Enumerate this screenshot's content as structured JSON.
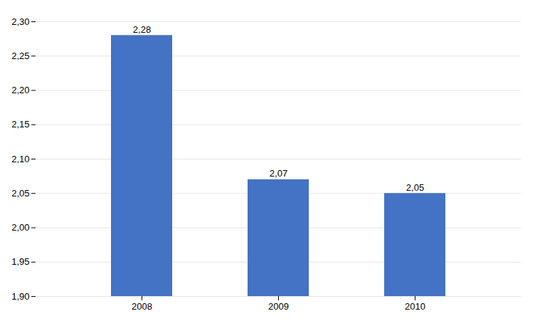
{
  "chart_data": {
    "type": "bar",
    "categories": [
      "2008",
      "2009",
      "2010"
    ],
    "values": [
      2.28,
      2.07,
      2.05
    ],
    "value_labels": [
      "2,28",
      "2,07",
      "2,05"
    ],
    "data_labels": true,
    "color": "#4472C4",
    "ylim": [
      1.9,
      2.3
    ],
    "yticks": [
      {
        "value": 1.9,
        "label": "1,90"
      },
      {
        "value": 1.95,
        "label": "1,95"
      },
      {
        "value": 2.0,
        "label": "2,00"
      },
      {
        "value": 2.05,
        "label": "2,05"
      },
      {
        "value": 2.1,
        "label": "2,10"
      },
      {
        "value": 2.15,
        "label": "2,15"
      },
      {
        "value": 2.2,
        "label": "2,20"
      },
      {
        "value": 2.25,
        "label": "2,25"
      },
      {
        "value": 2.3,
        "label": "2,30"
      }
    ],
    "grid": true
  }
}
